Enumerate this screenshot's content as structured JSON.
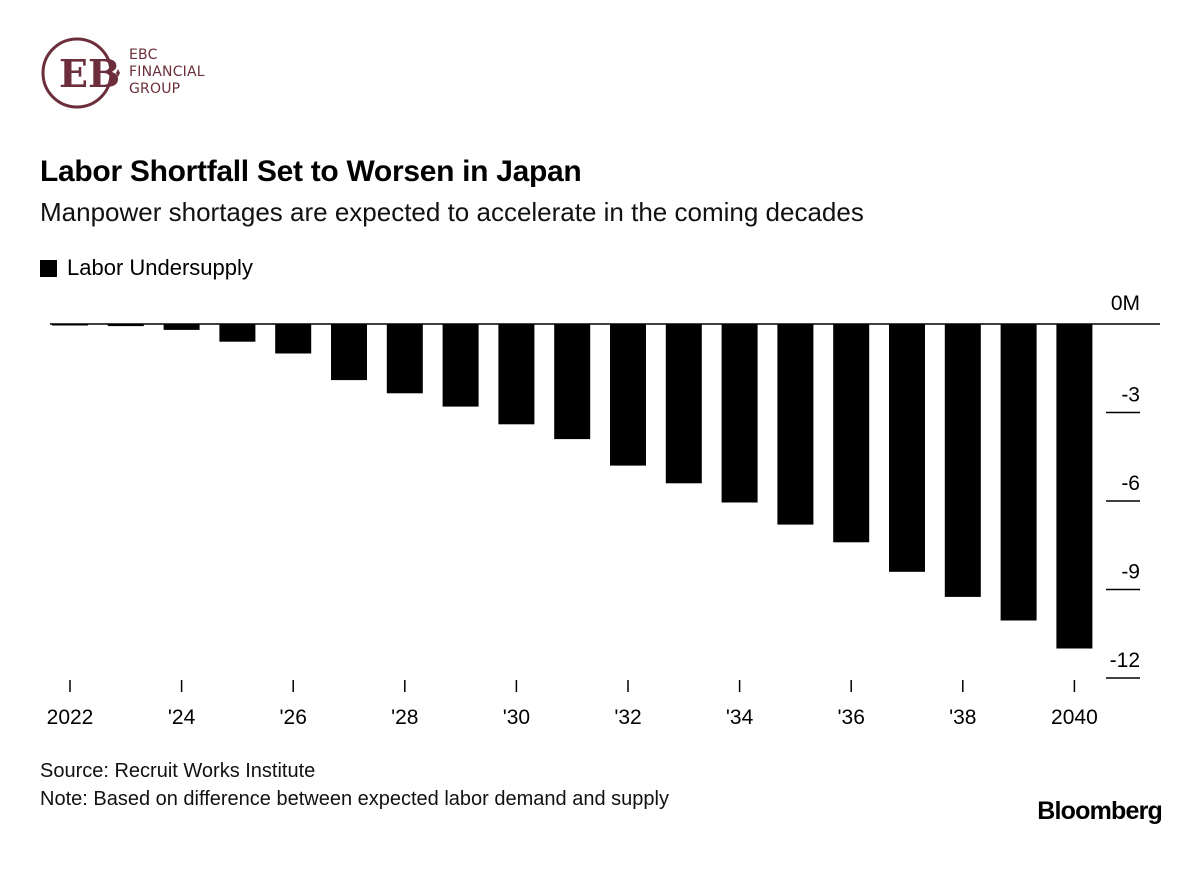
{
  "logo": {
    "line1": "EBC",
    "line2": "FINANCIAL",
    "line3": "GROUP",
    "color": "#6b2e3a"
  },
  "chart_data": {
    "type": "bar",
    "title": "Labor Shortfall Set to Worsen in Japan",
    "subtitle": "Manpower shortages are expected to accelerate in the coming decades",
    "legend": [
      {
        "name": "Labor Undersupply",
        "color": "#000000"
      }
    ],
    "x": [
      2022,
      2023,
      2024,
      2025,
      2026,
      2027,
      2028,
      2029,
      2030,
      2031,
      2032,
      2033,
      2034,
      2035,
      2036,
      2037,
      2038,
      2039,
      2040
    ],
    "x_tick_labels": [
      {
        "x": 2022,
        "label": "2022"
      },
      {
        "x": 2024,
        "label": "'24"
      },
      {
        "x": 2026,
        "label": "'26"
      },
      {
        "x": 2028,
        "label": "'28"
      },
      {
        "x": 2030,
        "label": "'30"
      },
      {
        "x": 2032,
        "label": "'32"
      },
      {
        "x": 2034,
        "label": "'34"
      },
      {
        "x": 2036,
        "label": "'36"
      },
      {
        "x": 2038,
        "label": "'38"
      },
      {
        "x": 2040,
        "label": "2040"
      }
    ],
    "series": [
      {
        "name": "Labor Undersupply",
        "color": "#000000",
        "values": [
          -0.03,
          -0.07,
          -0.2,
          -0.6,
          -1.0,
          -1.9,
          -2.35,
          -2.8,
          -3.4,
          -3.9,
          -4.8,
          -5.4,
          -6.05,
          -6.8,
          -7.4,
          -8.4,
          -9.25,
          -10.05,
          -11.0
        ]
      }
    ],
    "y_ticks": [
      {
        "value": 0,
        "label": "0M"
      },
      {
        "value": -3,
        "label": "-3"
      },
      {
        "value": -6,
        "label": "-6"
      },
      {
        "value": -9,
        "label": "-9"
      },
      {
        "value": -12,
        "label": "-12"
      }
    ],
    "ylim": [
      -12,
      0
    ],
    "xlabel": "",
    "ylabel": "",
    "grid": false,
    "legend_position": "top-left"
  },
  "footer": {
    "source": "Source: Recruit Works Institute",
    "note": "Note: Based on difference between expected labor demand and supply",
    "brand": "Bloomberg"
  }
}
